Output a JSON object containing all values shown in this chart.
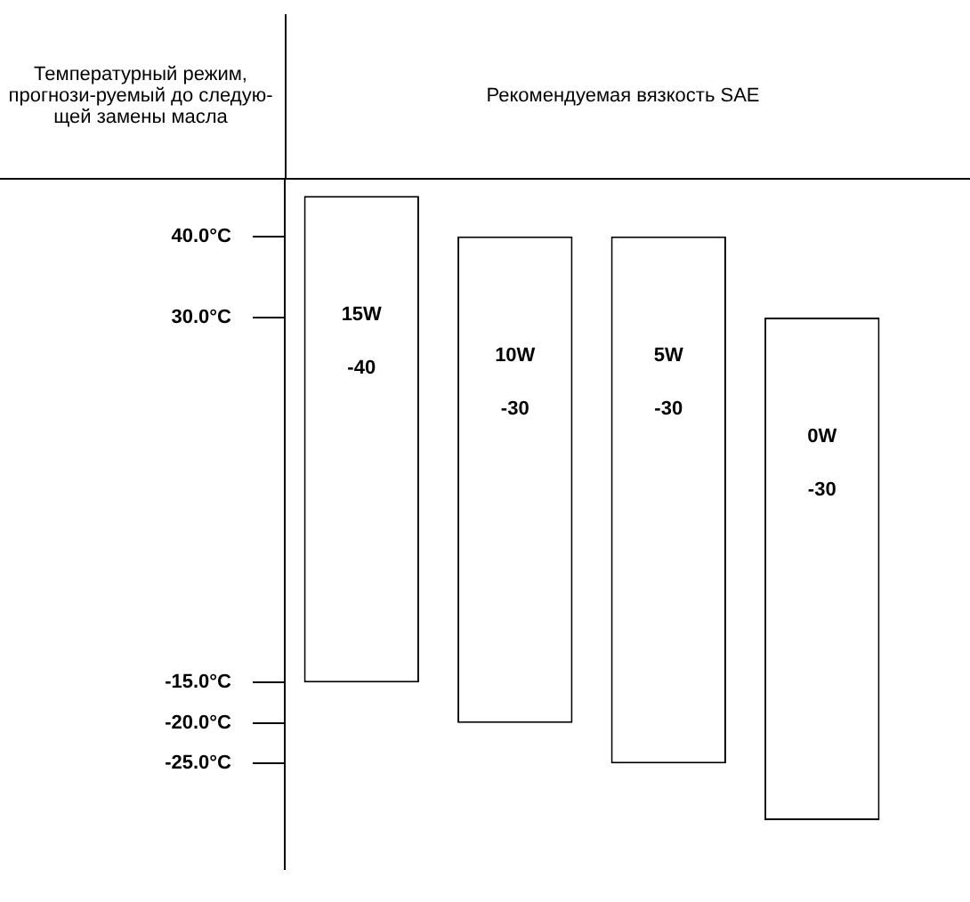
{
  "chart_data": {
    "type": "bar",
    "title": "Рекомендуемая вязкость SAE",
    "ylabel": "Температурный режим, прогнози-руемый до следую-щей замены масла",
    "categories": [
      "15W -40",
      "10W -30",
      "5W -30",
      "0W -30"
    ],
    "base": [
      -15,
      -20,
      -25,
      -32
    ],
    "values": [
      60,
      60,
      65,
      62
    ],
    "color": "#ffffff",
    "ylim": [
      -38,
      47
    ],
    "yticks": [
      {
        "value": 40,
        "label": "40.0°C"
      },
      {
        "value": 30,
        "label": "30.0°C"
      },
      {
        "value": -15,
        "label": "-15.0°C"
      },
      {
        "value": -20,
        "label": "-20.0°C"
      },
      {
        "value": -25,
        "label": "-25.0°C"
      }
    ],
    "grid": false,
    "legend": false,
    "tick_labels": "y"
  }
}
